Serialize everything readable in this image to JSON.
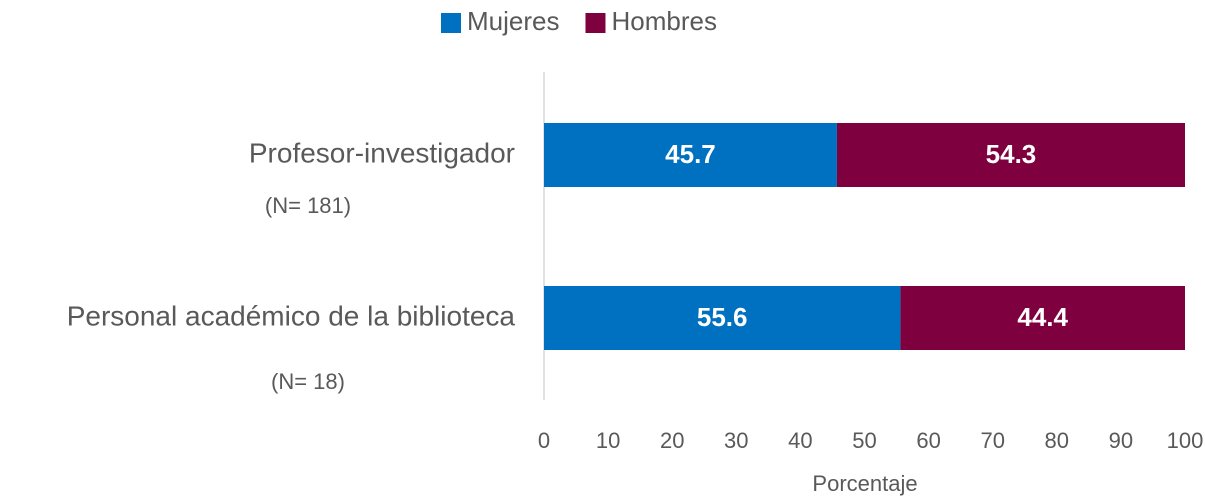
{
  "chart_data": {
    "type": "stacked_barh",
    "categories": [
      "Profesor-investigador",
      "Personal académico de la biblioteca"
    ],
    "category_notes": [
      "(N= 181)",
      "(N= 18)"
    ],
    "series": [
      {
        "name": "Mujeres",
        "color": "#0070c0",
        "values": [
          45.7,
          55.6
        ]
      },
      {
        "name": "Hombres",
        "color": "#7f003f",
        "values": [
          54.3,
          44.4
        ]
      }
    ],
    "xlabel": "Porcentaje",
    "xlim": [
      0,
      100
    ],
    "xticks": [
      0,
      10,
      20,
      30,
      40,
      50,
      60,
      70,
      80,
      90,
      100
    ],
    "legend": "top"
  }
}
